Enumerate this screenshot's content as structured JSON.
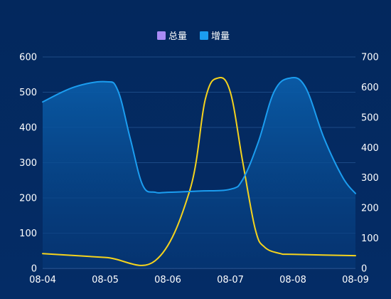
{
  "chart_data": {
    "type": "line",
    "categories": [
      "08-04",
      "08-05",
      "08-06",
      "08-07",
      "08-08",
      "08-09"
    ],
    "ylim_left": [
      0,
      600
    ],
    "ylim_right": [
      0,
      700
    ],
    "yticks_left": [
      "0",
      "100",
      "200",
      "300",
      "400",
      "500",
      "600"
    ],
    "yticks_right": [
      "0",
      "100",
      "200",
      "300",
      "400",
      "500",
      "600",
      "700"
    ],
    "grid": true,
    "legend_position": "top-center",
    "series": [
      {
        "name": "总量",
        "axis": "left",
        "color": "#f5d31d",
        "legend_color": "#a98bf5",
        "points": [
          [
            0.0,
            42
          ],
          [
            1.0,
            31
          ],
          [
            1.8,
            22
          ],
          [
            2.35,
            220
          ],
          [
            2.6,
            480
          ],
          [
            2.8,
            540
          ],
          [
            3.0,
            500
          ],
          [
            3.2,
            300
          ],
          [
            3.4,
            110
          ],
          [
            3.55,
            60
          ],
          [
            3.8,
            42
          ],
          [
            4.0,
            40
          ],
          [
            5.0,
            36
          ]
        ]
      },
      {
        "name": "增量",
        "axis": "right",
        "color": "#1b9df0",
        "legend_color": "#1b9df0",
        "area": true,
        "points": [
          [
            0.0,
            551
          ],
          [
            0.5,
            600
          ],
          [
            1.0,
            618
          ],
          [
            1.2,
            590
          ],
          [
            1.4,
            430
          ],
          [
            1.6,
            275
          ],
          [
            1.8,
            252
          ],
          [
            2.0,
            252
          ],
          [
            2.5,
            256
          ],
          [
            3.0,
            262
          ],
          [
            3.2,
            295
          ],
          [
            3.45,
            420
          ],
          [
            3.7,
            585
          ],
          [
            3.95,
            630
          ],
          [
            4.2,
            600
          ],
          [
            4.5,
            430
          ],
          [
            4.8,
            300
          ],
          [
            5.0,
            248
          ]
        ]
      }
    ]
  }
}
